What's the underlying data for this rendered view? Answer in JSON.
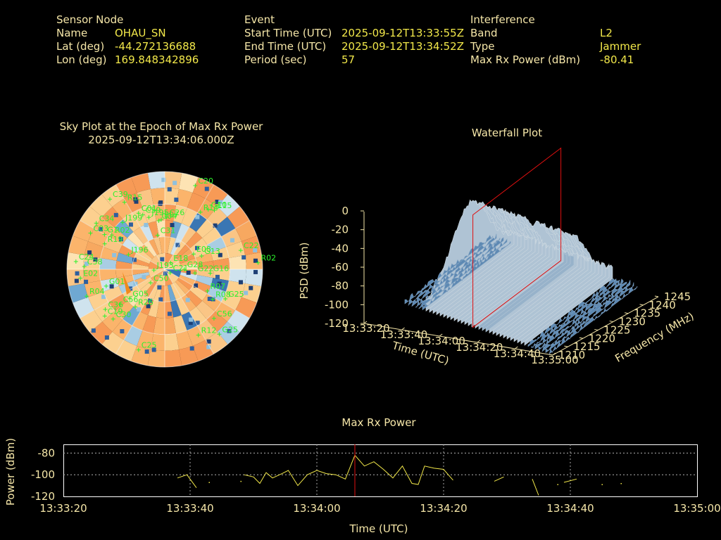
{
  "header": {
    "sensor": {
      "heading": "Sensor Node",
      "rows": [
        {
          "label": "Name",
          "value": "OHAU_SN"
        },
        {
          "label": "Lat (deg)",
          "value": "-44.272136688"
        },
        {
          "label": "Lon (deg)",
          "value": "169.848342896"
        }
      ]
    },
    "event": {
      "heading": "Event",
      "rows": [
        {
          "label": "Start Time (UTC)",
          "value": "2025-09-12T13:33:55Z"
        },
        {
          "label": "End Time (UTC)",
          "value": "2025-09-12T13:34:52Z"
        },
        {
          "label": "Period (sec)",
          "value": "57"
        }
      ]
    },
    "interference": {
      "heading": "Interference",
      "rows": [
        {
          "label": "Band",
          "value": "L2"
        },
        {
          "label": "Type",
          "value": "Jammer"
        },
        {
          "label": "Max Rx Power (dBm)",
          "value": "-80.41"
        }
      ]
    }
  },
  "chart_data": [
    {
      "type": "scatter",
      "title": "Sky Plot at the Epoch of Max Rx Power",
      "subtitle": "2025-09-12T13:34:06.000Z",
      "satellites": [
        {
          "name": "R15",
          "az": 329,
          "el": 18
        },
        {
          "name": "C39",
          "az": 322,
          "el": 8
        },
        {
          "name": "C34",
          "az": 304,
          "el": 14
        },
        {
          "name": "J199",
          "az": 318,
          "el": 32
        },
        {
          "name": "C01",
          "az": 335,
          "el": 33
        },
        {
          "name": "C59",
          "az": 338,
          "el": 36
        },
        {
          "name": "J195",
          "az": 343,
          "el": 40
        },
        {
          "name": "E07",
          "az": 356,
          "el": 44
        },
        {
          "name": "C26",
          "az": 2,
          "el": 42
        },
        {
          "name": "C04",
          "az": 353,
          "el": 45
        },
        {
          "name": "C20",
          "az": 20,
          "el": 8
        },
        {
          "name": "R14",
          "az": 32,
          "el": 28
        },
        {
          "name": "G10",
          "az": 36,
          "el": 22
        },
        {
          "name": "E15",
          "az": 40,
          "el": 19
        },
        {
          "name": "C03",
          "az": 296,
          "el": 14
        },
        {
          "name": "R02",
          "az": 303,
          "el": 32
        },
        {
          "name": "G1",
          "az": 300,
          "el": 26
        },
        {
          "name": "C31",
          "az": 348,
          "el": 58
        },
        {
          "name": "R19",
          "az": 293,
          "el": 30
        },
        {
          "name": "C24",
          "az": 275,
          "el": 8
        },
        {
          "name": "C38",
          "az": 272,
          "el": 16
        },
        {
          "name": "J196",
          "az": 292,
          "el": 54
        },
        {
          "name": "E18",
          "az": 42,
          "el": 82
        },
        {
          "name": "E08",
          "az": 62,
          "el": 60
        },
        {
          "name": "G13",
          "az": 70,
          "el": 54
        },
        {
          "name": "G28",
          "az": 90,
          "el": 72
        },
        {
          "name": "G22",
          "az": 97,
          "el": 62
        },
        {
          "name": "C21",
          "az": 124,
          "el": 84
        },
        {
          "name": "G16",
          "az": 95,
          "el": 48
        },
        {
          "name": "C22",
          "az": 76,
          "el": 18
        },
        {
          "name": "R02",
          "az": 86,
          "el": 4
        },
        {
          "name": "J193",
          "az": 266,
          "el": 80
        },
        {
          "name": "E02",
          "az": 264,
          "el": 12
        },
        {
          "name": "G01",
          "az": 254,
          "el": 34
        },
        {
          "name": "R04",
          "az": 251,
          "el": 14
        },
        {
          "name": "C50",
          "az": 226,
          "el": 72
        },
        {
          "name": "R07",
          "az": 117,
          "el": 46
        },
        {
          "name": "R08",
          "az": 122,
          "el": 38
        },
        {
          "name": "G25",
          "az": 116,
          "el": 28
        },
        {
          "name": "G05",
          "az": 230,
          "el": 48
        },
        {
          "name": "C56",
          "az": 232,
          "el": 38
        },
        {
          "name": "R26",
          "az": 218,
          "el": 46
        },
        {
          "name": "C36",
          "az": 236,
          "el": 24
        },
        {
          "name": "C19",
          "az": 232,
          "el": 20
        },
        {
          "name": "C30",
          "az": 226,
          "el": 24
        },
        {
          "name": "C56",
          "az": 135,
          "el": 26
        },
        {
          "name": "G25",
          "az": 140,
          "el": 12
        },
        {
          "name": "R12",
          "az": 153,
          "el": 22
        },
        {
          "name": "C25",
          "az": 198,
          "el": 12
        }
      ]
    },
    {
      "type": "surface",
      "title": "Waterfall Plot",
      "xlabel": "Time (UTC)",
      "ylabel": "Frequency (MHz)",
      "zlabel": "PSD (dBm)",
      "x_ticks": [
        "13:33:20",
        "13:33:40",
        "13:34:00",
        "13:34:20",
        "13:34:40",
        "13:35:00"
      ],
      "y_ticks": [
        "1210",
        "1215",
        "1220",
        "1225",
        "1230",
        "1235",
        "1240",
        "1245"
      ],
      "z_ticks": [
        0,
        -20,
        -40,
        -60,
        -80,
        -100,
        -120
      ],
      "zlim": [
        -120,
        0
      ],
      "marker_time": "13:34:06"
    },
    {
      "type": "line",
      "title": "Max Rx Power",
      "xlabel": "Time (UTC)",
      "ylabel": "Power (dBm)",
      "x_ticks": [
        "13:33:20",
        "13:33:40",
        "13:34:00",
        "13:34:20",
        "13:34:40",
        "13:35:00"
      ],
      "y_ticks": [
        -80,
        -100,
        -120
      ],
      "ylim": [
        -120,
        -72
      ],
      "xlim_sec": [
        0,
        100
      ],
      "marker_sec": 46,
      "color": "#f2e84a",
      "marker_color": "#e01010",
      "series": [
        {
          "values": [
            [
              18,
              -103
            ],
            [
              19.5,
              -100
            ],
            [
              21,
              -112
            ]
          ]
        },
        {
          "values": [
            [
              23,
              -107
            ]
          ]
        },
        {
          "values": [
            [
              28,
              -106
            ]
          ]
        },
        {
          "values": [
            [
              28.5,
              -100
            ],
            [
              30,
              -102
            ],
            [
              31,
              -108
            ],
            [
              32,
              -98
            ],
            [
              33,
              -103
            ],
            [
              34.5,
              -99
            ],
            [
              35.5,
              -96
            ],
            [
              37,
              -110
            ],
            [
              38.5,
              -100
            ],
            [
              40,
              -96
            ],
            [
              41.5,
              -99
            ],
            [
              43,
              -100
            ],
            [
              44.5,
              -104
            ],
            [
              46,
              -82
            ],
            [
              47.5,
              -92
            ],
            [
              49,
              -88
            ],
            [
              50.5,
              -95
            ],
            [
              52,
              -103
            ],
            [
              53.5,
              -92
            ],
            [
              55,
              -108
            ],
            [
              56,
              -109
            ],
            [
              57,
              -92
            ],
            [
              58.5,
              -94
            ],
            [
              60,
              -95
            ],
            [
              61.5,
              -105
            ]
          ]
        },
        {
          "values": [
            [
              68,
              -106
            ],
            [
              69.5,
              -102
            ]
          ]
        },
        {
          "values": [
            [
              74,
              -104
            ],
            [
              75,
              -119
            ]
          ]
        },
        {
          "values": [
            [
              78,
              -109
            ]
          ]
        },
        {
          "values": [
            [
              79,
              -107
            ],
            [
              81,
              -104
            ]
          ]
        },
        {
          "values": [
            [
              85,
              -109
            ]
          ]
        },
        {
          "values": [
            [
              88,
              -108
            ]
          ]
        }
      ]
    }
  ]
}
